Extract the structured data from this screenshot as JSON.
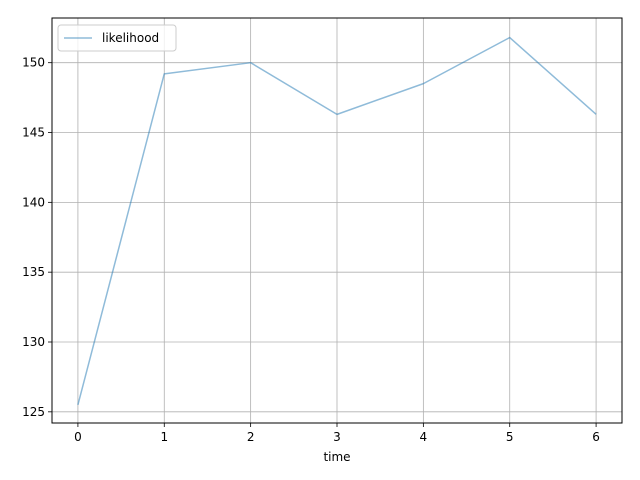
{
  "chart_data": {
    "type": "line",
    "title": "",
    "xlabel": "time",
    "ylabel": "",
    "x": [
      0,
      1,
      2,
      3,
      4,
      5,
      6
    ],
    "series": [
      {
        "name": "likelihood",
        "color": "#1f77b4",
        "values": [
          125.5,
          149.2,
          150.0,
          146.3,
          148.5,
          151.8,
          146.3
        ]
      }
    ],
    "xlim": [
      -0.3,
      6.3
    ],
    "ylim": [
      124.2,
      153.2
    ],
    "xticks": [
      0,
      1,
      2,
      3,
      4,
      5,
      6
    ],
    "yticks": [
      125,
      130,
      135,
      140,
      145,
      150
    ],
    "grid": true,
    "legend_position": "upper-left"
  }
}
